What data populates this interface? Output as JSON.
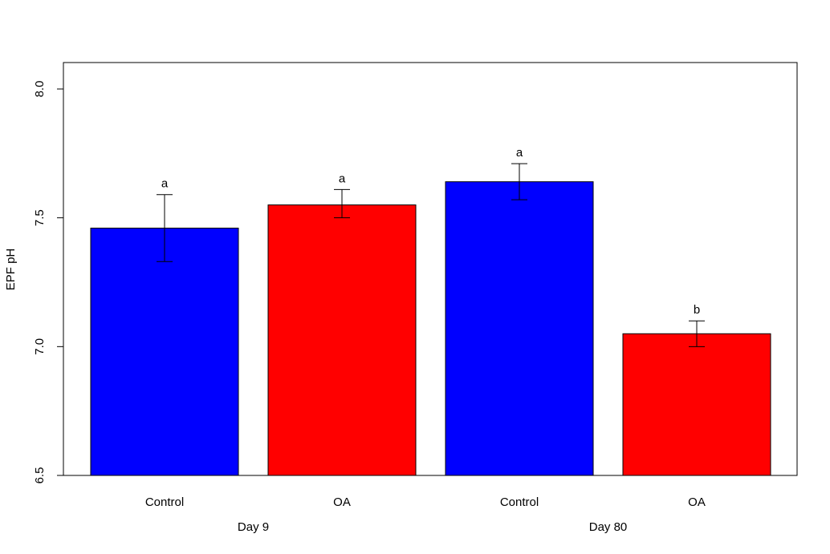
{
  "chart_data": {
    "type": "bar",
    "ylabel": "EPF pH",
    "ylim": [
      6.5,
      8.0
    ],
    "yticks": [
      6.5,
      7.0,
      7.5,
      8.0
    ],
    "ytick_labels": [
      "6.5",
      "7.0",
      "7.5",
      "8.0"
    ],
    "categories": [
      "Control",
      "OA",
      "Control",
      "OA"
    ],
    "groups": [
      {
        "label": "Day 9",
        "members": [
          0,
          1
        ]
      },
      {
        "label": "Day 80",
        "members": [
          2,
          3
        ]
      }
    ],
    "values": [
      7.46,
      7.55,
      7.64,
      7.05
    ],
    "error_low": [
      7.33,
      7.5,
      7.57,
      7.0
    ],
    "error_high": [
      7.59,
      7.61,
      7.71,
      7.1
    ],
    "significance_letters": [
      "a",
      "a",
      "a",
      "b"
    ],
    "bar_colors": [
      "#0000ff",
      "#ff0000",
      "#0000ff",
      "#ff0000"
    ],
    "grid": false,
    "legend": "none"
  }
}
